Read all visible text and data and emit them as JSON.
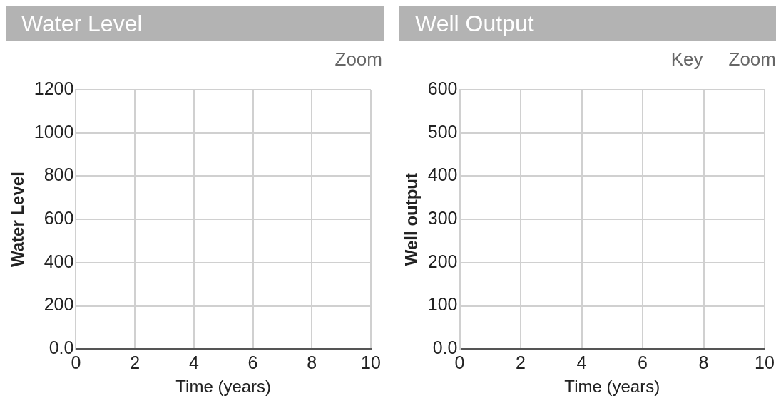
{
  "chart_data": [
    {
      "type": "line",
      "title": "Water Level",
      "xlabel": "Time (years)",
      "ylabel": "Water Level",
      "annotations": [
        "Zoom"
      ],
      "xlim": [
        0,
        10
      ],
      "xticks": [
        0,
        2,
        4,
        6,
        8,
        10
      ],
      "ylim": [
        0,
        1200
      ],
      "yticks": [
        {
          "value": 0,
          "label": "0.0"
        },
        200,
        400,
        600,
        800,
        1000,
        1200
      ],
      "grid": true
    },
    {
      "type": "line",
      "title": "Well Output",
      "xlabel": "Time (years)",
      "ylabel": "Well output",
      "annotations": [
        "Key",
        "Zoom"
      ],
      "xlim": [
        0,
        10
      ],
      "xticks": [
        0,
        2,
        4,
        6,
        8,
        10
      ],
      "ylim": [
        0,
        600
      ],
      "yticks": [
        {
          "value": 0,
          "label": "0.0"
        },
        100,
        200,
        300,
        400,
        500,
        600
      ],
      "grid": true
    }
  ]
}
